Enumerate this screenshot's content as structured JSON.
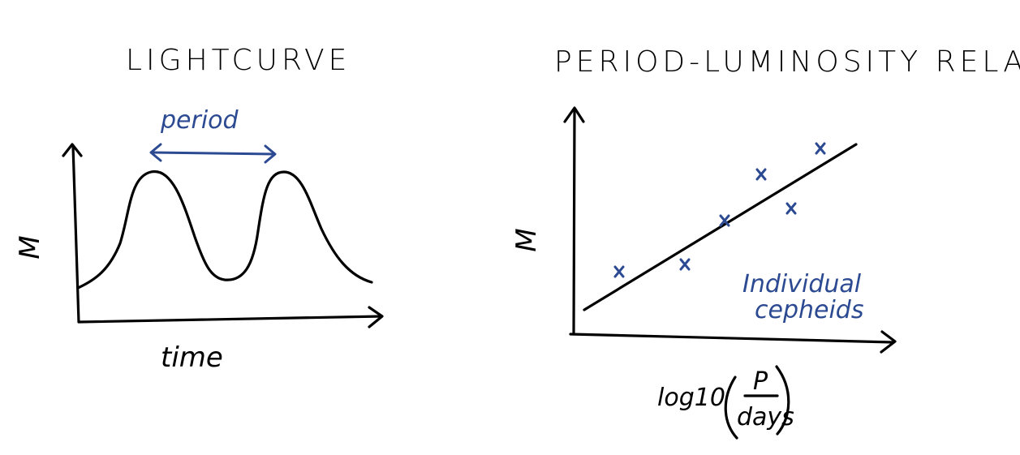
{
  "left_panel": {
    "title": "LIGHTCURVE",
    "y_label": "M",
    "x_label": "time",
    "period_label": "period"
  },
  "right_panel": {
    "title": "PERIOD-LUMINOSITY RELATION",
    "y_label": "M",
    "x_label_prefix": "log10",
    "x_label_numerator": "P",
    "x_label_denominator": "days",
    "annotation_line1": "Individual",
    "annotation_line2": "cepheids",
    "points_count_description": "Individual cepheids"
  },
  "colors": {
    "ink": "#000000",
    "annotation": "#2c4a92"
  },
  "icons": [
    "double-arrow",
    "cross-marker",
    "axis-arrow"
  ]
}
